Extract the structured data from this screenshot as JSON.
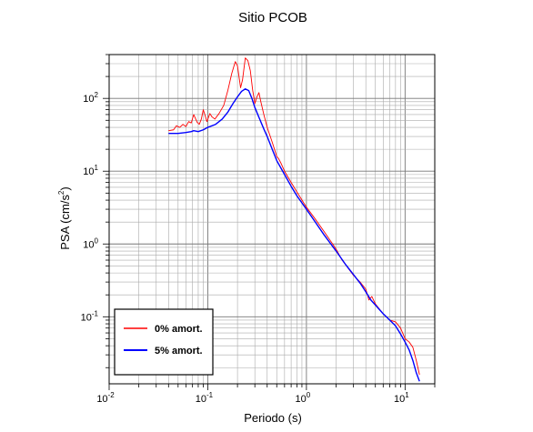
{
  "chart_data": {
    "type": "line",
    "title": "Sitio PCOB",
    "xlabel": "Periodo (s)",
    "ylabel_base": "PSA (cm/s",
    "ylabel_exp": "2",
    "ylabel_tail": ")",
    "xscale": "log",
    "yscale": "log",
    "xlim": [
      0.01,
      20
    ],
    "ylim": [
      0.012,
      400
    ],
    "grid": true,
    "legend_position": "bottom-left",
    "x_ticks": [
      {
        "value": 0.01,
        "base": "10",
        "exp": "-2"
      },
      {
        "value": 0.1,
        "base": "10",
        "exp": "-1"
      },
      {
        "value": 1,
        "base": "10",
        "exp": "0"
      },
      {
        "value": 10,
        "base": "10",
        "exp": "1"
      }
    ],
    "y_ticks": [
      {
        "value": 0.1,
        "base": "10",
        "exp": "-1"
      },
      {
        "value": 1,
        "base": "10",
        "exp": "0"
      },
      {
        "value": 10,
        "base": "10",
        "exp": "1"
      },
      {
        "value": 100,
        "base": "10",
        "exp": "2"
      }
    ],
    "series": [
      {
        "name": "0% amort.",
        "color": "#ff0000",
        "points": [
          [
            0.04,
            36
          ],
          [
            0.045,
            37
          ],
          [
            0.048,
            42
          ],
          [
            0.052,
            40
          ],
          [
            0.056,
            44
          ],
          [
            0.06,
            41
          ],
          [
            0.064,
            48
          ],
          [
            0.068,
            46
          ],
          [
            0.072,
            60
          ],
          [
            0.075,
            53
          ],
          [
            0.078,
            47
          ],
          [
            0.082,
            44
          ],
          [
            0.086,
            52
          ],
          [
            0.09,
            70
          ],
          [
            0.094,
            58
          ],
          [
            0.098,
            48
          ],
          [
            0.105,
            62
          ],
          [
            0.11,
            56
          ],
          [
            0.118,
            52
          ],
          [
            0.13,
            62
          ],
          [
            0.145,
            80
          ],
          [
            0.16,
            130
          ],
          [
            0.175,
            220
          ],
          [
            0.19,
            320
          ],
          [
            0.2,
            280
          ],
          [
            0.215,
            140
          ],
          [
            0.225,
            180
          ],
          [
            0.24,
            360
          ],
          [
            0.255,
            330
          ],
          [
            0.27,
            240
          ],
          [
            0.285,
            130
          ],
          [
            0.3,
            85
          ],
          [
            0.315,
            105
          ],
          [
            0.33,
            120
          ],
          [
            0.345,
            90
          ],
          [
            0.37,
            60
          ],
          [
            0.4,
            40
          ],
          [
            0.45,
            25
          ],
          [
            0.5,
            16
          ],
          [
            0.52,
            15
          ],
          [
            0.55,
            13
          ],
          [
            0.6,
            10
          ],
          [
            0.7,
            7
          ],
          [
            0.8,
            5.2
          ],
          [
            1.0,
            3.2
          ],
          [
            1.2,
            2.3
          ],
          [
            1.5,
            1.5
          ],
          [
            2.0,
            0.85
          ],
          [
            2.3,
            0.6
          ],
          [
            2.6,
            0.48
          ],
          [
            3.0,
            0.37
          ],
          [
            3.5,
            0.3
          ],
          [
            4.0,
            0.24
          ],
          [
            4.3,
            0.17
          ],
          [
            4.6,
            0.19
          ],
          [
            5.0,
            0.15
          ],
          [
            6.0,
            0.11
          ],
          [
            7.0,
            0.09
          ],
          [
            8.0,
            0.085
          ],
          [
            9.0,
            0.07
          ],
          [
            10.0,
            0.05
          ],
          [
            11.0,
            0.045
          ],
          [
            12.0,
            0.038
          ],
          [
            13.0,
            0.025
          ],
          [
            14.0,
            0.016
          ]
        ]
      },
      {
        "name": "5% amort.",
        "color": "#0000ff",
        "points": [
          [
            0.04,
            33
          ],
          [
            0.05,
            33
          ],
          [
            0.06,
            34
          ],
          [
            0.068,
            35
          ],
          [
            0.072,
            36
          ],
          [
            0.08,
            35
          ],
          [
            0.09,
            37
          ],
          [
            0.1,
            40
          ],
          [
            0.12,
            44
          ],
          [
            0.14,
            52
          ],
          [
            0.16,
            65
          ],
          [
            0.18,
            85
          ],
          [
            0.2,
            105
          ],
          [
            0.22,
            125
          ],
          [
            0.24,
            135
          ],
          [
            0.26,
            128
          ],
          [
            0.28,
            100
          ],
          [
            0.3,
            75
          ],
          [
            0.33,
            55
          ],
          [
            0.37,
            38
          ],
          [
            0.4,
            30
          ],
          [
            0.45,
            20
          ],
          [
            0.5,
            14
          ],
          [
            0.6,
            9
          ],
          [
            0.7,
            6.2
          ],
          [
            0.8,
            4.6
          ],
          [
            1.0,
            3.0
          ],
          [
            1.2,
            2.1
          ],
          [
            1.5,
            1.35
          ],
          [
            2.0,
            0.8
          ],
          [
            2.5,
            0.52
          ],
          [
            3.0,
            0.38
          ],
          [
            3.5,
            0.29
          ],
          [
            4.0,
            0.22
          ],
          [
            4.5,
            0.17
          ],
          [
            5.0,
            0.145
          ],
          [
            6.0,
            0.11
          ],
          [
            7.0,
            0.09
          ],
          [
            8.0,
            0.075
          ],
          [
            9.0,
            0.058
          ],
          [
            10.0,
            0.045
          ],
          [
            11.0,
            0.035
          ],
          [
            12.0,
            0.025
          ],
          [
            13.0,
            0.017
          ],
          [
            14.0,
            0.013
          ]
        ]
      }
    ]
  }
}
